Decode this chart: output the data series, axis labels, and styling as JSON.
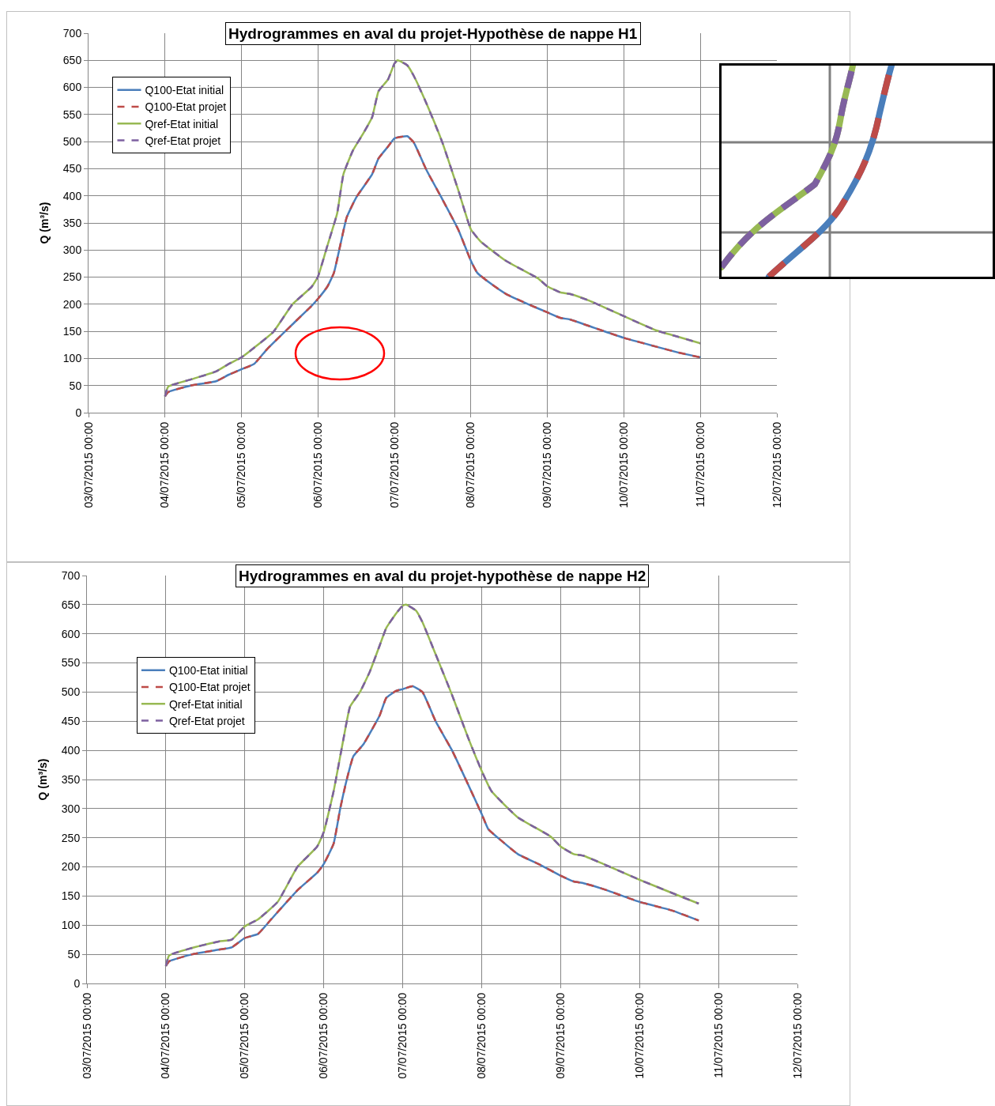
{
  "chart_data": [
    {
      "type": "line",
      "title": "Hydrogrammes en aval du projet-Hypothèse de nappe H1",
      "ylabel": "Q (m³/s)",
      "xlim": [
        "2015-07-03",
        "2015-07-12"
      ],
      "xticks": [
        {
          "value": "2015-07-03",
          "label": "03/07/2015 00:00"
        },
        {
          "value": "2015-07-04",
          "label": "04/07/2015 00:00"
        },
        {
          "value": "2015-07-05",
          "label": "05/07/2015 00:00"
        },
        {
          "value": "2015-07-06",
          "label": "06/07/2015 00:00"
        },
        {
          "value": "2015-07-07",
          "label": "07/07/2015 00:00"
        },
        {
          "value": "2015-07-08",
          "label": "08/07/2015 00:00"
        },
        {
          "value": "2015-07-09",
          "label": "09/07/2015 00:00"
        },
        {
          "value": "2015-07-10",
          "label": "10/07/2015 00:00"
        },
        {
          "value": "2015-07-11",
          "label": "11/07/2015 00:00"
        },
        {
          "value": "2015-07-12",
          "label": "12/07/2015 00:00"
        }
      ],
      "ylim": [
        0,
        700
      ],
      "yticks": [
        0,
        50,
        100,
        150,
        200,
        250,
        300,
        350,
        400,
        450,
        500,
        550,
        600,
        650,
        700
      ],
      "grid": true,
      "legend": "top left",
      "series": [
        {
          "name": "Q100-Etat initial",
          "color": "#4a7ebb",
          "line_style": "solid",
          "x": [
            "2015-07-04T00:00",
            "2015-07-04T01:00",
            "2015-07-04T08:00",
            "2015-07-04T16:00",
            "2015-07-04T20:00",
            "2015-07-05T00:00",
            "2015-07-05T04:00",
            "2015-07-05T08:00",
            "2015-07-05T16:00",
            "2015-07-05T22:00",
            "2015-07-06T00:00",
            "2015-07-06T03:00",
            "2015-07-06T05:00",
            "2015-07-06T07:00",
            "2015-07-06T09:00",
            "2015-07-06T12:00",
            "2015-07-06T17:00",
            "2015-07-06T19:00",
            "2015-07-06T22:00",
            "2015-07-07T00:00",
            "2015-07-07T04:00",
            "2015-07-07T06:00",
            "2015-07-07T10:00",
            "2015-07-07T15:00",
            "2015-07-07T20:00",
            "2015-07-08T00:00",
            "2015-07-08T02:00",
            "2015-07-08T06:00",
            "2015-07-08T11:00",
            "2015-07-08T18:00",
            "2015-07-09T00:00",
            "2015-07-09T04:00",
            "2015-07-09T07:00",
            "2015-07-09T13:00",
            "2015-07-10T00:00",
            "2015-07-10T10:00",
            "2015-07-10T17:00",
            "2015-07-11T00:00"
          ],
          "values": [
            30,
            38,
            50,
            58,
            70,
            80,
            90,
            117,
            163,
            197,
            210,
            233,
            258,
            309,
            360,
            397,
            440,
            469,
            491,
            506,
            510,
            499,
            448,
            394,
            338,
            280,
            258,
            239,
            219,
            200,
            185,
            175,
            172,
            160,
            138,
            122,
            111,
            102
          ]
        },
        {
          "name": "Q100-Etat projet",
          "color": "#be4b48",
          "line_style": "dashed",
          "x": [
            "2015-07-04T00:00",
            "2015-07-04T01:00",
            "2015-07-04T08:00",
            "2015-07-04T16:00",
            "2015-07-04T20:00",
            "2015-07-05T00:00",
            "2015-07-05T04:00",
            "2015-07-05T08:00",
            "2015-07-05T16:00",
            "2015-07-05T22:00",
            "2015-07-06T00:00",
            "2015-07-06T03:00",
            "2015-07-06T05:00",
            "2015-07-06T07:00",
            "2015-07-06T09:00",
            "2015-07-06T12:00",
            "2015-07-06T17:00",
            "2015-07-06T19:00",
            "2015-07-06T22:00",
            "2015-07-07T00:00",
            "2015-07-07T04:00",
            "2015-07-07T06:00",
            "2015-07-07T10:00",
            "2015-07-07T15:00",
            "2015-07-07T20:00",
            "2015-07-08T00:00",
            "2015-07-08T02:00",
            "2015-07-08T06:00",
            "2015-07-08T11:00",
            "2015-07-08T18:00",
            "2015-07-09T00:00",
            "2015-07-09T04:00",
            "2015-07-09T07:00",
            "2015-07-09T13:00",
            "2015-07-10T00:00",
            "2015-07-10T10:00",
            "2015-07-10T17:00",
            "2015-07-11T00:00"
          ],
          "values": [
            30,
            38,
            50,
            58,
            70,
            80,
            90,
            117,
            163,
            197,
            210,
            233,
            258,
            309,
            360,
            397,
            440,
            469,
            491,
            506,
            510,
            499,
            448,
            394,
            338,
            280,
            258,
            239,
            219,
            200,
            185,
            175,
            172,
            160,
            138,
            122,
            111,
            102
          ]
        },
        {
          "name": "Qref-Etat initial",
          "color": "#98b954",
          "line_style": "solid",
          "x": [
            "2015-07-04T00:00",
            "2015-07-04T01:00",
            "2015-07-04T08:00",
            "2015-07-04T16:00",
            "2015-07-04T20:00",
            "2015-07-05T00:00",
            "2015-07-05T04:00",
            "2015-07-05T10:00",
            "2015-07-05T16:00",
            "2015-07-05T22:00",
            "2015-07-06T00:00",
            "2015-07-06T03:00",
            "2015-07-06T06:00",
            "2015-07-06T08:00",
            "2015-07-06T11:00",
            "2015-07-06T14:00",
            "2015-07-06T17:00",
            "2015-07-06T19:00",
            "2015-07-06T22:00",
            "2015-07-07T00:00",
            "2015-07-07T01:00",
            "2015-07-07T04:00",
            "2015-07-07T06:00",
            "2015-07-07T10:00",
            "2015-07-07T15:00",
            "2015-07-07T20:00",
            "2015-07-08T00:00",
            "2015-07-08T03:00",
            "2015-07-08T11:00",
            "2015-07-08T21:00",
            "2015-07-09T00:00",
            "2015-07-09T04:00",
            "2015-07-09T07:00",
            "2015-07-09T13:00",
            "2015-07-10T00:00",
            "2015-07-10T10:00",
            "2015-07-10T17:00",
            "2015-07-11T00:00"
          ],
          "values": [
            30,
            48,
            61,
            76,
            90,
            102,
            120,
            149,
            200,
            232,
            251,
            309,
            367,
            440,
            484,
            513,
            545,
            593,
            615,
            644,
            650,
            641,
            622,
            571,
            499,
            411,
            338,
            316,
            280,
            248,
            233,
            222,
            219,
            207,
            178,
            152,
            140,
            128
          ]
        },
        {
          "name": "Qref-Etat projet",
          "color": "#7d60a0",
          "line_style": "dashed",
          "x": [
            "2015-07-04T00:00",
            "2015-07-04T01:00",
            "2015-07-04T08:00",
            "2015-07-04T16:00",
            "2015-07-04T20:00",
            "2015-07-05T00:00",
            "2015-07-05T04:00",
            "2015-07-05T10:00",
            "2015-07-05T16:00",
            "2015-07-05T22:00",
            "2015-07-06T00:00",
            "2015-07-06T03:00",
            "2015-07-06T06:00",
            "2015-07-06T08:00",
            "2015-07-06T11:00",
            "2015-07-06T14:00",
            "2015-07-06T17:00",
            "2015-07-06T19:00",
            "2015-07-06T22:00",
            "2015-07-07T00:00",
            "2015-07-07T01:00",
            "2015-07-07T04:00",
            "2015-07-07T06:00",
            "2015-07-07T10:00",
            "2015-07-07T15:00",
            "2015-07-07T20:00",
            "2015-07-08T00:00",
            "2015-07-08T03:00",
            "2015-07-08T11:00",
            "2015-07-08T21:00",
            "2015-07-09T00:00",
            "2015-07-09T04:00",
            "2015-07-09T07:00",
            "2015-07-09T13:00",
            "2015-07-10T00:00",
            "2015-07-10T10:00",
            "2015-07-10T17:00",
            "2015-07-11T00:00"
          ],
          "values": [
            30,
            48,
            61,
            76,
            90,
            102,
            120,
            149,
            200,
            232,
            251,
            309,
            367,
            440,
            484,
            513,
            545,
            593,
            615,
            644,
            650,
            641,
            622,
            571,
            499,
            411,
            338,
            316,
            280,
            248,
            233,
            222,
            219,
            207,
            178,
            152,
            140,
            128
          ]
        }
      ]
    },
    {
      "type": "line",
      "title": "Hydrogrammes en aval du projet-hypothèse de nappe H2",
      "ylabel": "Q (m³/s)",
      "xlim": [
        "2015-07-03",
        "2015-07-12"
      ],
      "xticks": [
        {
          "value": "2015-07-03",
          "label": "03/07/2015 00:00"
        },
        {
          "value": "2015-07-04",
          "label": "04/07/2015 00:00"
        },
        {
          "value": "2015-07-05",
          "label": "05/07/2015 00:00"
        },
        {
          "value": "2015-07-06",
          "label": "06/07/2015 00:00"
        },
        {
          "value": "2015-07-07",
          "label": "07/07/2015 00:00"
        },
        {
          "value": "2015-07-08",
          "label": "08/07/2015 00:00"
        },
        {
          "value": "2015-07-09",
          "label": "09/07/2015 00:00"
        },
        {
          "value": "2015-07-10",
          "label": "10/07/2015 00:00"
        },
        {
          "value": "2015-07-11",
          "label": "11/07/2015 00:00"
        },
        {
          "value": "2015-07-12",
          "label": "12/07/2015 00:00"
        }
      ],
      "ylim": [
        0,
        700
      ],
      "yticks": [
        0,
        50,
        100,
        150,
        200,
        250,
        300,
        350,
        400,
        450,
        500,
        550,
        600,
        650,
        700
      ],
      "grid": true,
      "legend": "top left",
      "series": [
        {
          "name": "Q100-Etat initial",
          "color": "#4a7ebb",
          "line_style": "solid",
          "x": [
            "2015-07-04T00:00",
            "2015-07-04T01:00",
            "2015-07-04T08:00",
            "2015-07-04T16:00",
            "2015-07-04T20:00",
            "2015-07-05T00:00",
            "2015-07-05T04:00",
            "2015-07-05T08:00",
            "2015-07-05T16:00",
            "2015-07-05T22:00",
            "2015-07-06T00:00",
            "2015-07-06T03:00",
            "2015-07-06T05:00",
            "2015-07-06T07:00",
            "2015-07-06T09:00",
            "2015-07-06T12:00",
            "2015-07-06T17:00",
            "2015-07-06T19:00",
            "2015-07-06T22:00",
            "2015-07-07T00:00",
            "2015-07-07T03:00",
            "2015-07-07T06:00",
            "2015-07-07T10:00",
            "2015-07-07T15:00",
            "2015-07-07T20:00",
            "2015-07-08T00:00",
            "2015-07-08T02:00",
            "2015-07-08T06:00",
            "2015-07-08T11:00",
            "2015-07-08T18:00",
            "2015-07-09T00:00",
            "2015-07-09T04:00",
            "2015-07-09T07:00",
            "2015-07-09T13:00",
            "2015-07-10T00:00",
            "2015-07-10T10:00",
            "2015-07-10T18:00"
          ],
          "values": [
            30,
            38,
            50,
            58,
            62,
            78,
            85,
            110,
            160,
            190,
            205,
            240,
            300,
            350,
            390,
            410,
            460,
            490,
            502,
            505,
            510,
            500,
            450,
            400,
            340,
            291,
            265,
            245,
            222,
            203,
            185,
            175,
            172,
            162,
            140,
            125,
            108
          ]
        },
        {
          "name": "Q100-Etat projet",
          "color": "#be4b48",
          "line_style": "dashed",
          "x": [
            "2015-07-04T00:00",
            "2015-07-04T01:00",
            "2015-07-04T08:00",
            "2015-07-04T16:00",
            "2015-07-04T20:00",
            "2015-07-05T00:00",
            "2015-07-05T04:00",
            "2015-07-05T08:00",
            "2015-07-05T16:00",
            "2015-07-05T22:00",
            "2015-07-06T00:00",
            "2015-07-06T03:00",
            "2015-07-06T05:00",
            "2015-07-06T07:00",
            "2015-07-06T09:00",
            "2015-07-06T12:00",
            "2015-07-06T17:00",
            "2015-07-06T19:00",
            "2015-07-06T22:00",
            "2015-07-07T00:00",
            "2015-07-07T03:00",
            "2015-07-07T06:00",
            "2015-07-07T10:00",
            "2015-07-07T15:00",
            "2015-07-07T20:00",
            "2015-07-08T00:00",
            "2015-07-08T02:00",
            "2015-07-08T06:00",
            "2015-07-08T11:00",
            "2015-07-08T18:00",
            "2015-07-09T00:00",
            "2015-07-09T04:00",
            "2015-07-09T07:00",
            "2015-07-09T13:00",
            "2015-07-10T00:00",
            "2015-07-10T10:00",
            "2015-07-10T18:00"
          ],
          "values": [
            30,
            38,
            50,
            58,
            62,
            78,
            85,
            110,
            160,
            190,
            205,
            240,
            300,
            350,
            390,
            410,
            460,
            490,
            502,
            505,
            510,
            500,
            450,
            400,
            340,
            291,
            265,
            245,
            222,
            203,
            185,
            175,
            172,
            162,
            140,
            125,
            108
          ]
        },
        {
          "name": "Qref-Etat initial",
          "color": "#98b954",
          "line_style": "solid",
          "x": [
            "2015-07-04T00:00",
            "2015-07-04T01:00",
            "2015-07-04T08:00",
            "2015-07-04T16:00",
            "2015-07-04T20:00",
            "2015-07-05T00:00",
            "2015-07-05T04:00",
            "2015-07-05T10:00",
            "2015-07-05T16:00",
            "2015-07-05T22:00",
            "2015-07-06T00:00",
            "2015-07-06T03:00",
            "2015-07-06T06:00",
            "2015-07-06T08:00",
            "2015-07-06T11:00",
            "2015-07-06T14:00",
            "2015-07-06T17:00",
            "2015-07-06T19:00",
            "2015-07-06T22:00",
            "2015-07-07T00:00",
            "2015-07-07T01:00",
            "2015-07-07T04:00",
            "2015-07-07T06:00",
            "2015-07-07T10:00",
            "2015-07-07T15:00",
            "2015-07-07T20:00",
            "2015-07-08T00:00",
            "2015-07-08T03:00",
            "2015-07-08T11:00",
            "2015-07-08T21:00",
            "2015-07-09T00:00",
            "2015-07-09T04:00",
            "2015-07-09T07:00",
            "2015-07-09T13:00",
            "2015-07-10T00:00",
            "2015-07-10T10:00",
            "2015-07-10T18:00"
          ],
          "values": [
            30,
            48,
            61,
            72,
            75,
            98,
            110,
            140,
            200,
            235,
            260,
            330,
            420,
            475,
            500,
            535,
            580,
            610,
            635,
            648,
            650,
            640,
            620,
            565,
            495,
            420,
            365,
            330,
            285,
            252,
            235,
            222,
            219,
            205,
            178,
            155,
            137
          ]
        },
        {
          "name": "Qref-Etat projet",
          "color": "#7d60a0",
          "line_style": "dashed",
          "x": [
            "2015-07-04T00:00",
            "2015-07-04T01:00",
            "2015-07-04T08:00",
            "2015-07-04T16:00",
            "2015-07-04T20:00",
            "2015-07-05T00:00",
            "2015-07-05T04:00",
            "2015-07-05T10:00",
            "2015-07-05T16:00",
            "2015-07-05T22:00",
            "2015-07-06T00:00",
            "2015-07-06T03:00",
            "2015-07-06T06:00",
            "2015-07-06T08:00",
            "2015-07-06T11:00",
            "2015-07-06T14:00",
            "2015-07-06T17:00",
            "2015-07-06T19:00",
            "2015-07-06T22:00",
            "2015-07-07T00:00",
            "2015-07-07T01:00",
            "2015-07-07T04:00",
            "2015-07-07T06:00",
            "2015-07-07T10:00",
            "2015-07-07T15:00",
            "2015-07-07T20:00",
            "2015-07-08T00:00",
            "2015-07-08T03:00",
            "2015-07-08T11:00",
            "2015-07-08T21:00",
            "2015-07-09T00:00",
            "2015-07-09T04:00",
            "2015-07-09T07:00",
            "2015-07-09T13:00",
            "2015-07-10T00:00",
            "2015-07-10T10:00",
            "2015-07-10T18:00"
          ],
          "values": [
            30,
            48,
            61,
            72,
            75,
            98,
            110,
            140,
            200,
            235,
            260,
            330,
            420,
            475,
            500,
            535,
            580,
            610,
            635,
            648,
            650,
            640,
            620,
            565,
            495,
            420,
            365,
            330,
            285,
            252,
            235,
            222,
            219,
            205,
            178,
            155,
            137
          ]
        }
      ]
    }
  ]
}
